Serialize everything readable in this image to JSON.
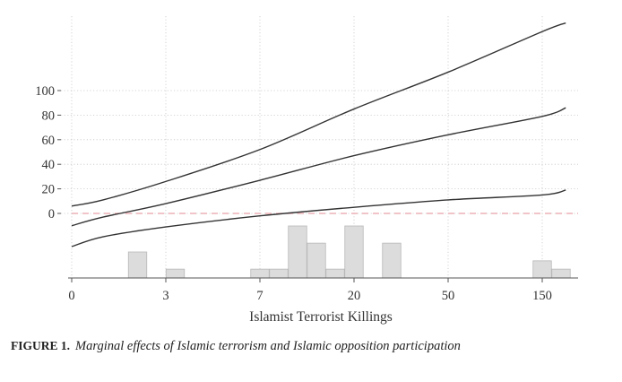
{
  "chart_data": {
    "type": "line",
    "xlabel": "Islamist Terrorist Killings",
    "x_tick_labels": [
      "0",
      "3",
      "7",
      "20",
      "50",
      "150"
    ],
    "y_tick_labels": [
      "0",
      "20",
      "40",
      "60",
      "80",
      "100"
    ],
    "ylim": [
      -50,
      150
    ],
    "grid": true,
    "reference_line": {
      "y": 0,
      "color": "#e8a0a8",
      "style": "dashed"
    },
    "series": [
      {
        "x": [
          0,
          1,
          3,
          7,
          20,
          50,
          150,
          150
        ],
        "values": [
          6,
          11,
          26,
          52,
          85,
          115,
          148,
          155
        ]
      },
      {
        "x": [
          0,
          1,
          3,
          7,
          20,
          50,
          150,
          150
        ],
        "values": [
          -10,
          -3,
          8,
          27,
          47,
          64,
          79,
          86
        ]
      },
      {
        "x": [
          0,
          1,
          3,
          7,
          20,
          50,
          150,
          150
        ],
        "values": [
          -27,
          -19,
          -11,
          -2,
          5,
          11,
          15,
          19
        ]
      }
    ],
    "histogram": {
      "bars": [
        {
          "tick_pos": 0.7,
          "height": 0.5
        },
        {
          "tick_pos": 1.1,
          "height": 0.17
        },
        {
          "tick_pos": 2.0,
          "height": 0.17
        },
        {
          "tick_pos": 2.2,
          "height": 0.17
        },
        {
          "tick_pos": 2.4,
          "height": 1.0
        },
        {
          "tick_pos": 2.6,
          "height": 0.67
        },
        {
          "tick_pos": 2.8,
          "height": 0.17
        },
        {
          "tick_pos": 3.0,
          "height": 1.0
        },
        {
          "tick_pos": 3.4,
          "height": 0.67
        },
        {
          "tick_pos": 5.0,
          "height": 0.33
        },
        {
          "tick_pos": 5.2,
          "height": 0.17
        }
      ],
      "color": "#dcdcdc"
    }
  },
  "caption": {
    "label": "FIGURE 1.",
    "text": "Marginal effects of Islamic terrorism and Islamic opposition participation"
  }
}
